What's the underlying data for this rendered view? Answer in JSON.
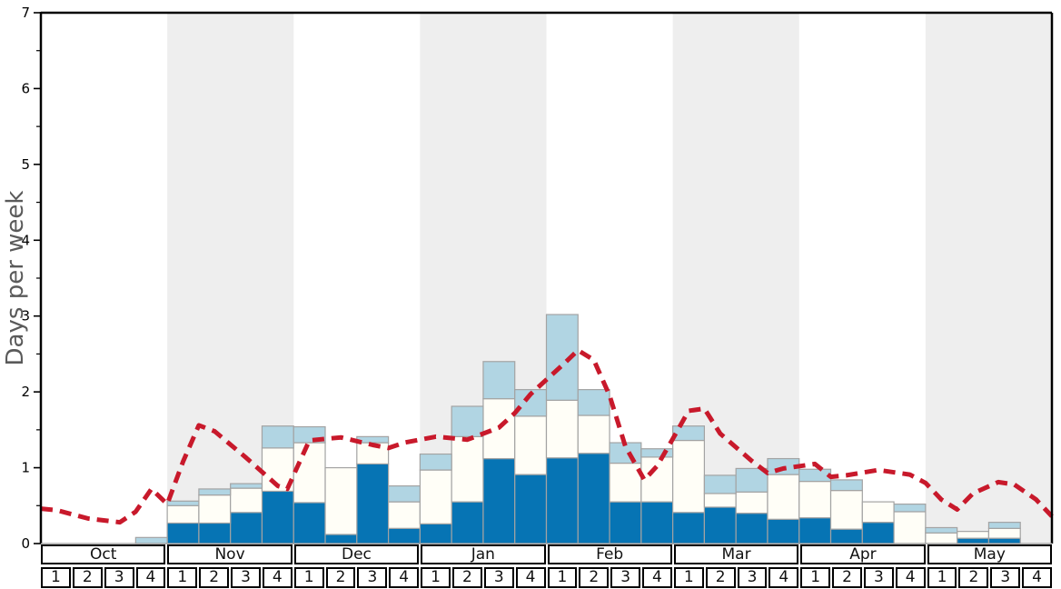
{
  "chart_data": {
    "type": "bar",
    "subtype": "stacked-bars-with-dashed-line",
    "title": "",
    "ylabel": "Days per week",
    "xlabel": "",
    "ylim": [
      0,
      7
    ],
    "y_major_ticks": [
      0,
      1,
      2,
      3,
      4,
      5,
      6,
      7
    ],
    "y_minor_tick_step": 0.5,
    "grid": false,
    "legend": "none",
    "months": [
      {
        "label": "Oct",
        "shaded": false
      },
      {
        "label": "Nov",
        "shaded": true
      },
      {
        "label": "Dec",
        "shaded": false
      },
      {
        "label": "Jan",
        "shaded": true
      },
      {
        "label": "Feb",
        "shaded": false
      },
      {
        "label": "Mar",
        "shaded": true
      },
      {
        "label": "Apr",
        "shaded": false
      },
      {
        "label": "May",
        "shaded": true
      }
    ],
    "week_labels": [
      "1",
      "2",
      "3",
      "4"
    ],
    "weeks_per_month": 4,
    "series": [
      {
        "name": "dark-blue-segment",
        "color": "#0674b4",
        "values": [
          0,
          0,
          0,
          0,
          0.27,
          0.27,
          0.41,
          0.69,
          0.54,
          0.12,
          1.05,
          0.2,
          0.26,
          0.55,
          1.12,
          0.91,
          1.13,
          1.19,
          0.55,
          0.55,
          0.41,
          0.48,
          0.4,
          0.32,
          0.34,
          0.19,
          0.28,
          0,
          0,
          0.07,
          0.07,
          0
        ]
      },
      {
        "name": "white-segment",
        "color": "#fffef7",
        "values": [
          0,
          0,
          0,
          0,
          0.23,
          0.37,
          0.32,
          0.57,
          0.79,
          0.88,
          0.28,
          0.35,
          0.71,
          0.86,
          0.79,
          0.77,
          0.76,
          0.5,
          0.51,
          0.59,
          0.95,
          0.18,
          0.28,
          0.59,
          0.48,
          0.51,
          0.27,
          0.42,
          0.14,
          0.09,
          0.13,
          0
        ]
      },
      {
        "name": "light-blue-segment",
        "color": "#b1d5e3",
        "values": [
          0,
          0,
          0,
          0.08,
          0.06,
          0.08,
          0.06,
          0.29,
          0.21,
          0,
          0.08,
          0.21,
          0.21,
          0.4,
          0.49,
          0.35,
          1.13,
          0.34,
          0.27,
          0.11,
          0.19,
          0.24,
          0.31,
          0.21,
          0.16,
          0.14,
          0,
          0.1,
          0.07,
          0,
          0.08,
          0
        ]
      }
    ],
    "line": {
      "name": "red-dashed-trend",
      "color": "#c8192b",
      "style": "dashed",
      "width": 5,
      "points_x_in_weeks": [
        [
          0,
          0.46
        ],
        [
          0.5,
          0.44
        ],
        [
          1.5,
          0.33
        ],
        [
          2.5,
          0.28
        ],
        [
          3,
          0.42
        ],
        [
          3.5,
          0.72
        ],
        [
          4,
          0.52
        ],
        [
          4.5,
          1.08
        ],
        [
          5,
          1.56
        ],
        [
          5.5,
          1.48
        ],
        [
          6.5,
          1.13
        ],
        [
          7.5,
          0.76
        ],
        [
          7.8,
          0.72
        ],
        [
          8.5,
          1.36
        ],
        [
          9.5,
          1.4
        ],
        [
          10.5,
          1.3
        ],
        [
          11,
          1.26
        ],
        [
          11.5,
          1.33
        ],
        [
          12.5,
          1.41
        ],
        [
          13.5,
          1.37
        ],
        [
          14.5,
          1.53
        ],
        [
          15,
          1.72
        ],
        [
          15.5,
          1.97
        ],
        [
          16.5,
          2.35
        ],
        [
          17,
          2.55
        ],
        [
          17.5,
          2.42
        ],
        [
          18,
          1.95
        ],
        [
          18.5,
          1.28
        ],
        [
          19.1,
          0.84
        ],
        [
          19.5,
          1.02
        ],
        [
          20,
          1.38
        ],
        [
          20.5,
          1.75
        ],
        [
          21,
          1.78
        ],
        [
          21.5,
          1.45
        ],
        [
          22.5,
          1.09
        ],
        [
          23,
          0.93
        ],
        [
          23.5,
          0.99
        ],
        [
          24.5,
          1.05
        ],
        [
          25,
          0.88
        ],
        [
          25.5,
          0.9
        ],
        [
          26.5,
          0.97
        ],
        [
          27.5,
          0.91
        ],
        [
          28,
          0.8
        ],
        [
          28.5,
          0.58
        ],
        [
          29,
          0.45
        ],
        [
          29.5,
          0.66
        ],
        [
          30.3,
          0.81
        ],
        [
          30.8,
          0.78
        ],
        [
          31.5,
          0.58
        ],
        [
          32,
          0.36
        ]
      ]
    },
    "colors": {
      "shaded_band": "#eeeeee",
      "bar_border": "#a3a3a3",
      "axis_label_gray": "#5a5a5a",
      "spine": "#000000"
    }
  }
}
